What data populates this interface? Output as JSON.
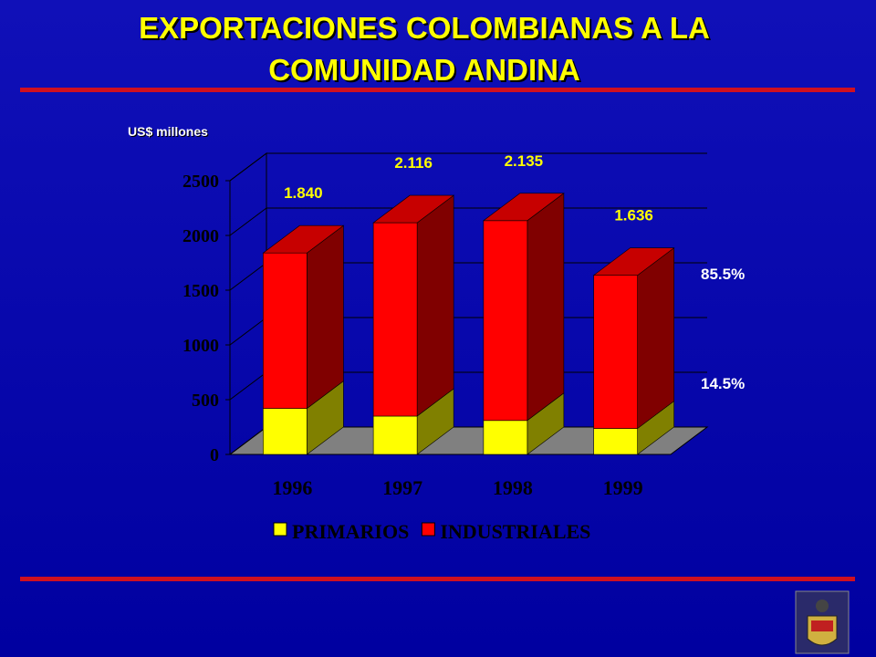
{
  "chart_data": {
    "type": "bar3d-stacked",
    "title": "EXPORTACIONES COLOMBIANAS A LA",
    "subtitle": "COMUNIDAD ANDINA",
    "y_label": "US$ millones",
    "categories": [
      "1996",
      "1997",
      "1998",
      "1999"
    ],
    "series": [
      {
        "name": "PRIMARIOS",
        "color": "#ffff00",
        "values": [
          420,
          350,
          310,
          237
        ]
      },
      {
        "name": "INDUSTRIALES",
        "color": "#ff0000",
        "values": [
          1420,
          1766,
          1825,
          1399
        ]
      }
    ],
    "totals": {
      "values": [
        1840,
        2116,
        2135,
        1636
      ],
      "value_labels": [
        "1.840",
        "2.116",
        "2.135",
        "1.636"
      ]
    },
    "annotations": [
      "85.5%",
      "14.5%"
    ],
    "ylim": [
      0,
      2500
    ],
    "yticks": [
      0,
      500,
      1000,
      1500,
      2000,
      2500
    ],
    "grid": true
  }
}
